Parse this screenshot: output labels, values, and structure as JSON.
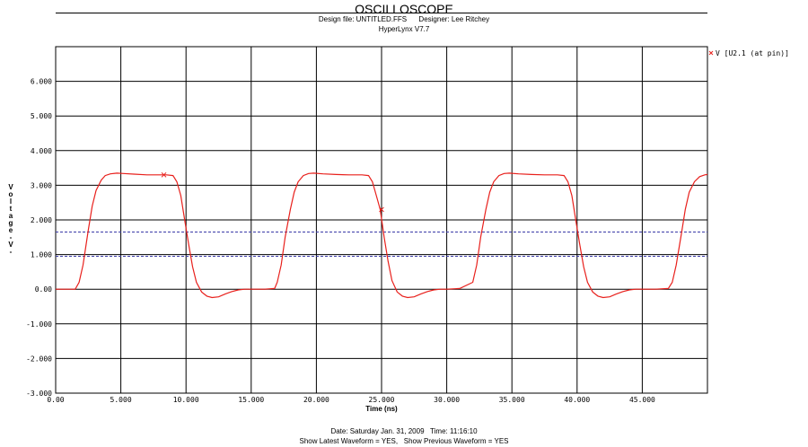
{
  "header": {
    "title": "OSCILLOSCOPE",
    "design_line": "Design file: UNTITLED.FFS      Designer: Lee Ritchey",
    "version_line": "HyperLynx V7.7"
  },
  "footer": {
    "date_line": "Date: Saturday Jan. 31, 2009   Time: 11:16:10",
    "waveform_line": "Show Latest Waveform = YES,   Show Previous Waveform = YES"
  },
  "colors": {
    "trace": "#e8201c",
    "grid": "#000000",
    "threshold": "#3a3aa8"
  },
  "chart_data": {
    "type": "line",
    "xlabel": "Time (ns)",
    "ylabel": "Voltage -V-",
    "xlim": [
      0,
      50
    ],
    "ylim": [
      -3,
      7
    ],
    "grid": true,
    "legend_position": "top-right",
    "x_ticks": [
      "0.00",
      "5.000",
      "10.000",
      "15.000",
      "20.000",
      "25.000",
      "30.000",
      "35.000",
      "40.000",
      "45.000"
    ],
    "y_ticks": [
      "-3.000",
      "-2.000",
      "-1.000",
      "0.00",
      "1.000",
      "2.000",
      "3.000",
      "4.000",
      "5.000",
      "6.000"
    ],
    "series": [
      {
        "name": "V [U2.1 (at pin)]",
        "x": [
          0,
          1.5,
          1.8,
          2.1,
          2.5,
          2.8,
          3.1,
          3.5,
          3.8,
          4.2,
          4.7,
          5.2,
          6.0,
          7.0,
          8.0,
          8.5,
          9.0,
          9.3,
          9.6,
          9.9,
          10.2,
          10.5,
          10.8,
          11.2,
          11.6,
          12.0,
          12.5,
          13.0,
          13.5,
          14.0,
          14.5,
          15.0,
          16.0,
          16.8,
          17.0,
          17.3,
          17.6,
          18.0,
          18.3,
          18.6,
          19.0,
          19.4,
          19.8,
          20.5,
          21.5,
          22.5,
          23.5,
          24.0,
          24.3,
          24.6,
          24.9,
          25.2,
          25.5,
          25.8,
          26.2,
          26.6,
          27.0,
          27.5,
          28.0,
          28.5,
          29.0,
          29.5,
          30.0,
          31.0,
          32.0,
          32.3,
          32.6,
          33.0,
          33.3,
          33.6,
          34.0,
          34.4,
          34.8,
          35.5,
          36.5,
          37.5,
          38.5,
          39.0,
          39.3,
          39.6,
          39.9,
          40.2,
          40.5,
          40.8,
          41.2,
          41.6,
          42.0,
          42.5,
          43.0,
          43.5,
          44.0,
          44.5,
          45.0,
          46.0,
          47.0,
          47.3,
          47.6,
          48.0,
          48.3,
          48.6,
          49.0,
          49.4,
          49.8,
          50.0
        ],
        "y": [
          0.0,
          0.0,
          0.2,
          0.7,
          1.7,
          2.4,
          2.85,
          3.15,
          3.28,
          3.33,
          3.35,
          3.34,
          3.32,
          3.3,
          3.3,
          3.3,
          3.28,
          3.1,
          2.7,
          2.0,
          1.3,
          0.65,
          0.2,
          -0.08,
          -0.2,
          -0.24,
          -0.22,
          -0.14,
          -0.07,
          -0.02,
          0.0,
          0.0,
          0.0,
          0.02,
          0.2,
          0.7,
          1.5,
          2.3,
          2.8,
          3.1,
          3.28,
          3.34,
          3.35,
          3.33,
          3.31,
          3.3,
          3.3,
          3.28,
          3.1,
          2.7,
          2.3,
          1.5,
          0.8,
          0.25,
          -0.08,
          -0.2,
          -0.24,
          -0.22,
          -0.14,
          -0.07,
          -0.02,
          0.0,
          0.0,
          0.02,
          0.2,
          0.7,
          1.5,
          2.3,
          2.8,
          3.1,
          3.28,
          3.34,
          3.35,
          3.33,
          3.31,
          3.3,
          3.3,
          3.28,
          3.1,
          2.7,
          2.0,
          1.3,
          0.65,
          0.2,
          -0.08,
          -0.2,
          -0.24,
          -0.22,
          -0.14,
          -0.07,
          -0.02,
          0.0,
          0.0,
          0.0,
          0.02,
          0.2,
          0.7,
          1.6,
          2.3,
          2.8,
          3.1,
          3.25,
          3.3,
          3.31
        ]
      }
    ],
    "markers": [
      {
        "x": 8.3,
        "y": 3.3
      },
      {
        "x": 25.0,
        "y": 2.3
      }
    ],
    "threshold_lines": [
      1.65,
      0.95
    ]
  }
}
